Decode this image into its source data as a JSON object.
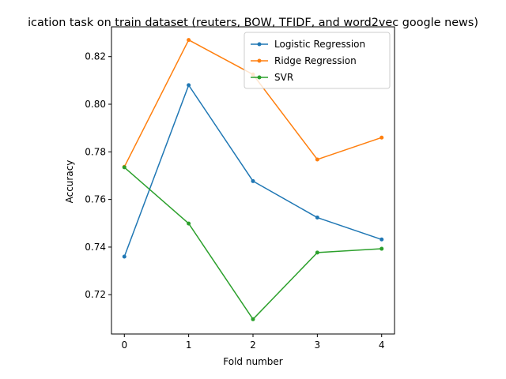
{
  "chart_data": {
    "type": "line",
    "title": "ication task on train dataset (reuters, BOW, TFIDF, and word2vec google news)",
    "xlabel": "Fold number",
    "ylabel": "Accuracy",
    "x": [
      0,
      1,
      2,
      3,
      4
    ],
    "xticks": [
      "0",
      "1",
      "2",
      "3",
      "4"
    ],
    "yticks": [
      "0.72",
      "0.74",
      "0.76",
      "0.78",
      "0.80",
      "0.82"
    ],
    "xlim": [
      -0.2,
      4.2
    ],
    "ylim": [
      0.7035,
      0.8325
    ],
    "grid": false,
    "legend_position": "top-right",
    "series": [
      {
        "name": "Logistic Regression",
        "color": "#1f77b4",
        "marker": "dot",
        "values": [
          0.736,
          0.808,
          0.7677,
          0.7524,
          0.7432
        ]
      },
      {
        "name": "Ridge Regression",
        "color": "#ff7f0e",
        "marker": "dot",
        "values": [
          0.7737,
          0.827,
          0.8125,
          0.7768,
          0.786
        ]
      },
      {
        "name": "SVR",
        "color": "#2ca02c",
        "marker": "dot",
        "values": [
          0.7735,
          0.7499,
          0.7097,
          0.7377,
          0.7393
        ]
      }
    ]
  }
}
